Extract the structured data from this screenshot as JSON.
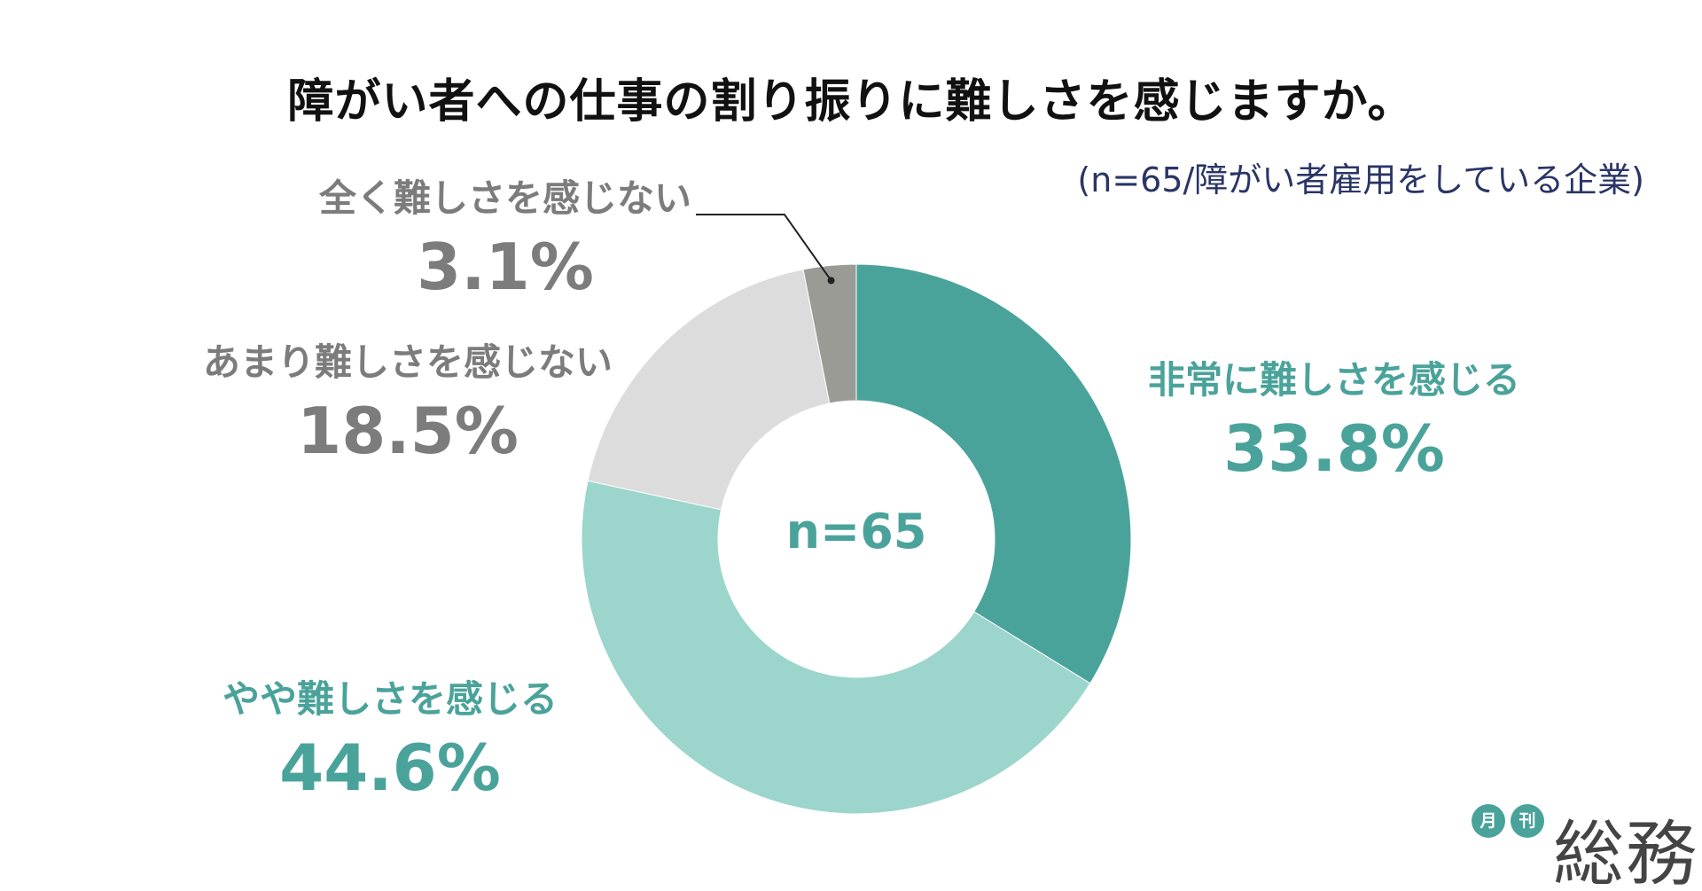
{
  "title": "障がい者への仕事の割り振りに難しさを感じますか。",
  "sample_note": "(n=65/障がい者雇用をしている企業)",
  "center_label": "n=65",
  "logo": {
    "circle_1": "月",
    "circle_2": "刊",
    "main": "総務"
  },
  "colors": {
    "very_difficult": "#4aa39a",
    "somewhat_difficult": "#9bd5cc",
    "not_very_difficult": "#dcdcdc",
    "not_at_all": "#9b9b96",
    "teal_text": "#4aa39a",
    "grey_text": "#7c7c7c"
  },
  "chart_data": {
    "type": "pie",
    "donut": true,
    "title": "障がい者への仕事の割り振りに難しさを感じますか。",
    "n": 65,
    "slices": [
      {
        "label": "非常に難しさを感じる",
        "value": 33.8,
        "display": "33.8%",
        "color": "#4aa39a"
      },
      {
        "label": "やや難しさを感じる",
        "value": 44.6,
        "display": "44.6%",
        "color": "#9bd5cc"
      },
      {
        "label": "あまり難しさを感じない",
        "value": 18.5,
        "display": "18.5%",
        "color": "#dcdcdc"
      },
      {
        "label": "全く難しさを感じない",
        "value": 3.1,
        "display": "3.1%",
        "color": "#9b9b96"
      }
    ],
    "start_angle": "12 o'clock",
    "direction": "clockwise"
  }
}
